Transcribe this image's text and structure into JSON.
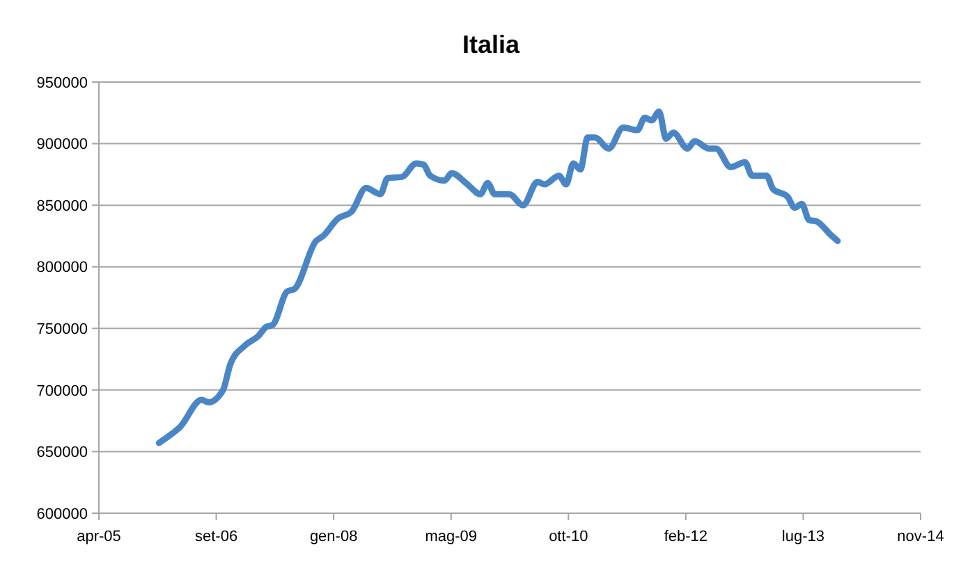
{
  "chart_data": {
    "type": "line",
    "title": "Italia",
    "x": [
      "2006-01",
      "2006-03",
      "2006-04",
      "2006-07",
      "2006-08",
      "2006-10",
      "2006-11",
      "2007-01",
      "2007-03",
      "2007-04",
      "2007-05",
      "2007-07",
      "2007-08",
      "2007-11",
      "2007-12",
      "2008-02",
      "2008-04",
      "2008-06",
      "2008-08",
      "2008-09",
      "2008-11",
      "2009-01",
      "2009-02",
      "2009-03",
      "2009-05",
      "2009-06",
      "2009-08",
      "2009-10",
      "2009-11",
      "2009-12",
      "2010-02",
      "2010-04",
      "2010-06",
      "2010-07",
      "2010-09",
      "2010-10",
      "2010-11",
      "2010-12",
      "2011-01",
      "2011-02",
      "2011-04",
      "2011-06",
      "2011-08",
      "2011-09",
      "2011-10",
      "2011-11",
      "2011-12",
      "2012-01",
      "2012-03",
      "2012-04",
      "2012-06",
      "2012-07",
      "2012-09",
      "2012-11",
      "2012-12",
      "2013-02",
      "2013-03",
      "2013-05",
      "2013-06",
      "2013-07",
      "2013-08",
      "2013-09",
      "2013-11",
      "2013-12"
    ],
    "series": [
      {
        "color": "#4a86c5",
        "values": [
          657000,
          665000,
          670000,
          692000,
          690000,
          700000,
          721000,
          736000,
          744000,
          751000,
          753000,
          780000,
          782000,
          821000,
          825000,
          839000,
          845000,
          864000,
          859000,
          872000,
          873000,
          884000,
          883000,
          874000,
          870000,
          876000,
          868000,
          859000,
          868000,
          859000,
          859000,
          850000,
          869000,
          867000,
          874000,
          867000,
          884000,
          879000,
          905000,
          905000,
          896000,
          913000,
          911000,
          921000,
          919000,
          926000,
          904000,
          909000,
          896000,
          902000,
          896000,
          896000,
          881000,
          885000,
          874000,
          874000,
          863000,
          857000,
          848000,
          851000,
          838000,
          837000,
          826000,
          821000
        ]
      }
    ],
    "xlim": [
      "2005-04-20",
      "2014-11-19"
    ],
    "xticks": [
      {
        "value": "2005-04-20",
        "label": "apr-05"
      },
      {
        "value": "2006-09-02",
        "label": "set-06"
      },
      {
        "value": "2008-01-15",
        "label": "gen-08"
      },
      {
        "value": "2009-05-29",
        "label": "mag-09"
      },
      {
        "value": "2010-10-11",
        "label": "ott-10"
      },
      {
        "value": "2012-02-23",
        "label": "feb-12"
      },
      {
        "value": "2013-07-07",
        "label": "lug-13"
      },
      {
        "value": "2014-11-19",
        "label": "nov-14"
      }
    ],
    "ylim": [
      600000,
      950000
    ],
    "yticks": [
      600000,
      650000,
      700000,
      750000,
      800000,
      850000,
      900000,
      950000
    ],
    "grid": "y",
    "marker": "none",
    "line_style": "solid"
  }
}
